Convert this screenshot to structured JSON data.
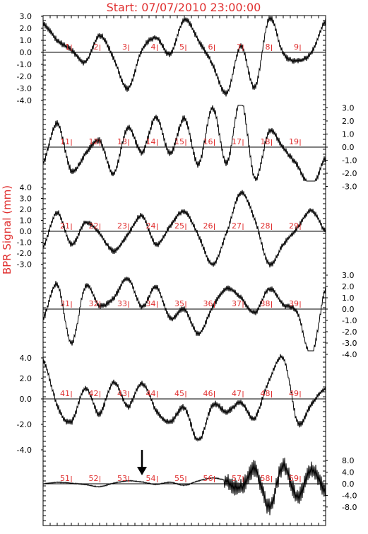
{
  "chart_data": {
    "type": "line",
    "title": "Start: 07/07/2010 23:00:00",
    "ylabel": "BPR Signal (mm)",
    "grid": false,
    "rows": [
      {
        "ticks": [
          "3.0",
          "2.0",
          "1.0",
          "0.0",
          "-1.0",
          "-2.0",
          "-3.0",
          "-4.0"
        ],
        "ylim": [
          -4.5,
          3.0
        ],
        "tick_side": "left",
        "markers": [
          "1",
          "2",
          "3",
          "4",
          "5",
          "6",
          "7",
          "8",
          "9"
        ],
        "x": [
          0,
          0.5,
          1,
          1.5,
          2,
          2.5,
          3,
          3.5,
          4,
          4.5,
          5,
          5.5,
          6,
          6.5,
          7,
          7.5,
          8,
          8.5,
          9,
          9.5,
          10
        ],
        "y": [
          2.4,
          1.0,
          0.2,
          -0.8,
          1.4,
          -0.5,
          -3.0,
          0.2,
          1.2,
          -0.1,
          2.7,
          1.0,
          -1.0,
          -3.4,
          0.5,
          -2.9,
          2.8,
          -0.1,
          -0.7,
          0.0,
          2.6
        ]
      },
      {
        "ticks": [
          "3.0",
          "2.0",
          "1.0",
          "0.0",
          "-1.0",
          "-2.0",
          "-3.0"
        ],
        "ylim": [
          -4.0,
          3.5
        ],
        "tick_side": "right",
        "markers": [
          "11",
          "12",
          "13",
          "14",
          "15",
          "16",
          "17",
          "18",
          "19"
        ],
        "x": [
          0,
          0.5,
          1,
          1.5,
          2,
          2.5,
          3,
          3.5,
          4,
          4.5,
          5,
          5.5,
          6,
          6.5,
          7,
          7.5,
          8,
          8.5,
          9,
          9.5,
          10
        ],
        "y": [
          -1.2,
          1.8,
          -1.8,
          -0.5,
          0.5,
          -2.0,
          1.5,
          -0.4,
          2.3,
          -0.5,
          2.2,
          -1.3,
          3.0,
          -1.2,
          3.7,
          -2.4,
          1.2,
          -0.1,
          -1.4,
          -3.1,
          -0.8
        ]
      },
      {
        "ticks": [
          "4.0",
          "3.0",
          "2.0",
          "1.0",
          "0.0",
          "-1.0",
          "-2.0",
          "-3.0"
        ],
        "ylim": [
          -4.0,
          4.5
        ],
        "tick_side": "left",
        "markers": [
          "21",
          "22",
          "23",
          "24",
          "25",
          "26",
          "27",
          "28",
          "29"
        ],
        "x": [
          0,
          0.5,
          1,
          1.5,
          2,
          2.5,
          3,
          3.5,
          4,
          4.5,
          5,
          5.5,
          6,
          6.5,
          7,
          7.5,
          8,
          8.5,
          9,
          9.5,
          10
        ],
        "y": [
          -1.4,
          1.7,
          -1.2,
          0.8,
          -0.2,
          -1.8,
          -0.3,
          1.4,
          -1.2,
          0.5,
          1.8,
          -0.4,
          -3.0,
          -0.1,
          3.5,
          1.0,
          -3.0,
          -1.2,
          0.3,
          1.9,
          0.0
        ]
      },
      {
        "ticks": [
          "3.0",
          "2.0",
          "1.0",
          "0.0",
          "-1.0",
          "-2.0",
          "-3.0",
          "-4.0"
        ],
        "ylim": [
          -4.5,
          3.5
        ],
        "tick_side": "right",
        "markers": [
          "31",
          "32",
          "33",
          "34",
          "35",
          "36",
          "37",
          "38",
          "39"
        ],
        "x": [
          0,
          0.5,
          1,
          1.5,
          2,
          2.5,
          3,
          3.5,
          4,
          4.5,
          5,
          5.5,
          6,
          6.5,
          7,
          7.5,
          8,
          8.5,
          9,
          9.5,
          10
        ],
        "y": [
          -0.8,
          2.2,
          -3.0,
          2.0,
          0.3,
          1.0,
          2.7,
          0.2,
          2.0,
          -0.8,
          0.0,
          -2.2,
          0.2,
          1.8,
          1.0,
          -0.3,
          1.8,
          0.4,
          -0.3,
          -4.1,
          1.8
        ]
      },
      {
        "ticks": [
          "4.0",
          "2.0",
          "0.0",
          "-2.0",
          "-4.0"
        ],
        "ylim": [
          -4.5,
          4.5
        ],
        "tick_side": "left",
        "markers": [
          "41",
          "42",
          "43",
          "44",
          "45",
          "46",
          "47",
          "48",
          "49"
        ],
        "x": [
          0,
          0.5,
          1,
          1.5,
          2,
          2.5,
          3,
          3.5,
          4,
          4.5,
          5,
          5.5,
          6,
          6.5,
          7,
          7.5,
          8,
          8.5,
          9,
          9.5,
          10
        ],
        "y": [
          3.8,
          -0.5,
          -1.8,
          1.0,
          -1.2,
          1.6,
          -0.6,
          1.5,
          -0.9,
          -1.8,
          -0.7,
          -3.3,
          -0.5,
          -1.0,
          -0.3,
          -1.5,
          1.8,
          4.0,
          -1.8,
          -0.4,
          1.0
        ]
      },
      {
        "ticks": [
          "8.0",
          "4.0",
          "0.0",
          "-4.0",
          "-8.0"
        ],
        "ylim": [
          -10.0,
          10.0
        ],
        "tick_side": "right",
        "markers": [
          "51",
          "52",
          "53",
          "54",
          "55",
          "56",
          "57",
          "58",
          "59"
        ],
        "x": [
          0,
          0.5,
          1,
          1.5,
          2,
          2.5,
          3,
          3.5,
          4,
          4.5,
          5,
          5.5,
          6,
          6.5,
          7,
          7.5,
          8,
          8.5,
          9,
          9.5,
          10
        ],
        "y": [
          0.0,
          0.5,
          0.2,
          -0.3,
          -1.0,
          0.2,
          1.0,
          0.6,
          -0.2,
          0.5,
          -0.5,
          1.0,
          2.0,
          1.0,
          -1.5,
          5.0,
          -7.8,
          6.0,
          -4.5,
          4.5,
          -2.5
        ]
      }
    ],
    "annotations": [
      "arrow-down"
    ]
  },
  "colors": {
    "accent": "#e03030",
    "trace": "#000000"
  }
}
